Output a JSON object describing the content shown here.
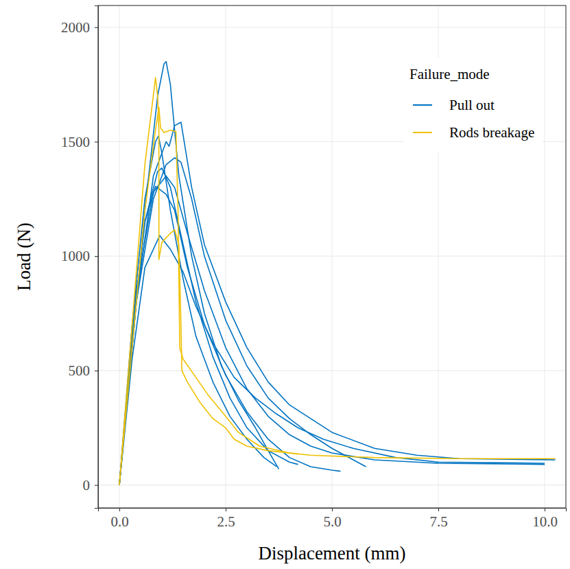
{
  "chart_data": {
    "type": "line",
    "x_label": "Displacement (mm)",
    "y_label": "Load (N)",
    "legend_title": "Failure_mode",
    "legend": "top-right",
    "grid": true,
    "xlim": [
      -0.5,
      10.5
    ],
    "ylim": [
      -100,
      2095
    ],
    "xticks": [
      {
        "value": 0,
        "label": "0.0"
      },
      2.5,
      {
        "value": 5,
        "label": "5.0"
      },
      7.5,
      {
        "value": 10,
        "label": "10.0"
      }
    ],
    "yticks": [
      0,
      500,
      1000,
      1500,
      2000
    ],
    "series": [
      {
        "name": "Pull out",
        "color": "#0073C2",
        "x": [
          0,
          0.3,
          0.6,
          0.9,
          1.05,
          1.1,
          1.2,
          1.4,
          1.7,
          2.0,
          2.4,
          2.8,
          3.2,
          3.5,
          3.75
        ],
        "values": [
          0,
          600,
          1200,
          1700,
          1840,
          1850,
          1750,
          1350,
          1000,
          750,
          520,
          370,
          250,
          150,
          70
        ]
      },
      {
        "name": "Pull out",
        "color": "#0073C2",
        "x": [
          0,
          0.4,
          0.8,
          1.1,
          1.17,
          1.3,
          1.45,
          1.7,
          2.0,
          2.5,
          3.0,
          3.5,
          4.0,
          5.0,
          6.0,
          7.0,
          8.0,
          10.25
        ],
        "values": [
          0,
          800,
          1350,
          1500,
          1480,
          1570,
          1585,
          1300,
          1050,
          800,
          600,
          450,
          350,
          230,
          160,
          130,
          115,
          110
        ]
      },
      {
        "name": "Pull out",
        "color": "#0073C2",
        "x": [
          0,
          0.3,
          0.6,
          0.85,
          0.92,
          1.0,
          1.2,
          1.5,
          1.8,
          2.2,
          2.6,
          3.0,
          3.4,
          3.7
        ],
        "values": [
          0,
          700,
          1250,
          1500,
          1525,
          1450,
          1200,
          900,
          650,
          450,
          300,
          200,
          120,
          80
        ]
      },
      {
        "name": "Pull out",
        "color": "#0073C2",
        "x": [
          0,
          0.4,
          0.8,
          1.1,
          1.3,
          1.45,
          1.7,
          2.0,
          2.5,
          3.0,
          3.5,
          4.0,
          4.5,
          5.0,
          5.5,
          5.8
        ],
        "values": [
          0,
          800,
          1250,
          1400,
          1430,
          1410,
          1250,
          1000,
          720,
          520,
          380,
          290,
          220,
          160,
          110,
          80
        ]
      },
      {
        "name": "Pull out",
        "color": "#0073C2",
        "x": [
          0,
          0.3,
          0.6,
          0.9,
          1.0,
          1.2,
          1.5,
          1.8,
          2.2,
          2.6,
          3.0,
          3.5,
          4.0,
          4.2
        ],
        "values": [
          0,
          650,
          1150,
          1370,
          1385,
          1300,
          1050,
          800,
          560,
          380,
          250,
          150,
          100,
          90
        ]
      },
      {
        "name": "Pull out",
        "color": "#0073C2",
        "x": [
          0,
          0.3,
          0.6,
          0.85,
          1.1,
          1.3,
          1.6,
          2.0,
          2.5,
          3.0,
          3.5,
          4.0,
          4.5,
          5.0,
          5.2
        ],
        "values": [
          0,
          650,
          1150,
          1305,
          1270,
          1200,
          950,
          700,
          480,
          320,
          200,
          120,
          80,
          65,
          60
        ]
      },
      {
        "name": "Pull out",
        "color": "#0073C2",
        "x": [
          0,
          0.3,
          0.6,
          0.95,
          1.2,
          1.5,
          1.8,
          2.2,
          2.7,
          3.2,
          3.7,
          4.2,
          4.8,
          5.5,
          6.5,
          7.5,
          10.0
        ],
        "values": [
          0,
          550,
          950,
          1090,
          1030,
          930,
          780,
          620,
          470,
          380,
          310,
          250,
          200,
          160,
          120,
          100,
          95
        ]
      },
      {
        "name": "Pull out",
        "color": "#0073C2",
        "x": [
          0,
          0.4,
          0.8,
          1.1,
          1.3,
          1.6,
          2.0,
          2.5,
          3.0,
          3.5,
          4.0,
          4.5,
          5.0,
          6.0,
          7.5,
          10.0
        ],
        "values": [
          0,
          850,
          1280,
          1350,
          1300,
          1100,
          850,
          600,
          420,
          300,
          220,
          170,
          140,
          110,
          95,
          90
        ]
      },
      {
        "name": "Rods breakage",
        "color": "#EFC000",
        "x": [
          0,
          0.3,
          0.6,
          0.85,
          0.9,
          0.93,
          0.93,
          1.0,
          1.2,
          1.3,
          1.4,
          1.45,
          1.47,
          1.6,
          1.9,
          2.2,
          2.5,
          2.7,
          3.0,
          3.5,
          4.5,
          6.0,
          8.0,
          10.25
        ],
        "values": [
          0,
          700,
          1400,
          1780,
          1700,
          1550,
          985,
          1060,
          1100,
          1115,
          1050,
          700,
          500,
          450,
          360,
          290,
          250,
          200,
          170,
          150,
          130,
          120,
          115,
          115
        ]
      },
      {
        "name": "Rods breakage",
        "color": "#EFC000",
        "x": [
          0,
          0.3,
          0.6,
          0.85,
          0.93,
          0.97,
          1.05,
          1.2,
          1.33,
          1.38,
          1.42,
          1.5,
          1.8,
          2.1,
          2.5,
          2.8,
          3.3,
          4.0,
          4.2
        ],
        "values": [
          0,
          600,
          1200,
          1550,
          1650,
          1560,
          1540,
          1550,
          1545,
          1200,
          600,
          550,
          470,
          390,
          300,
          230,
          170,
          140,
          135
        ]
      }
    ]
  }
}
